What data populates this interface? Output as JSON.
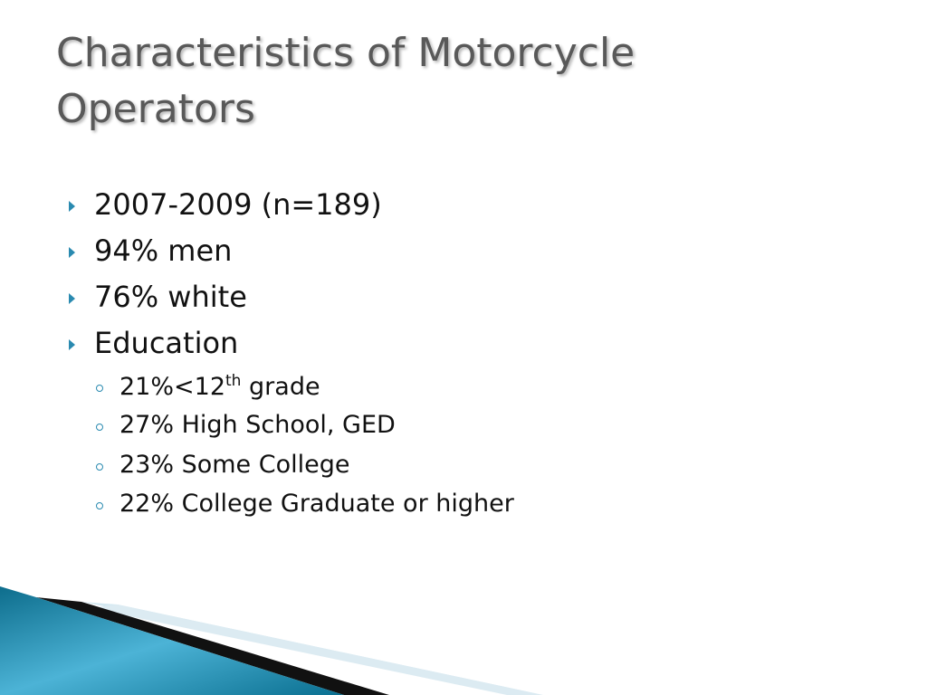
{
  "header": {
    "title": "Characteristics of Motorcycle Operators"
  },
  "bullets": [
    "2007-2009 (n=189)",
    "94% men",
    "76% white",
    "Education"
  ],
  "sub_bullets": [
    {
      "base": "21%<12",
      "sup": "th",
      "tail": "grade"
    },
    "27% High School, GED",
    "23% Some College",
    "22% College Graduate or higher"
  ]
}
